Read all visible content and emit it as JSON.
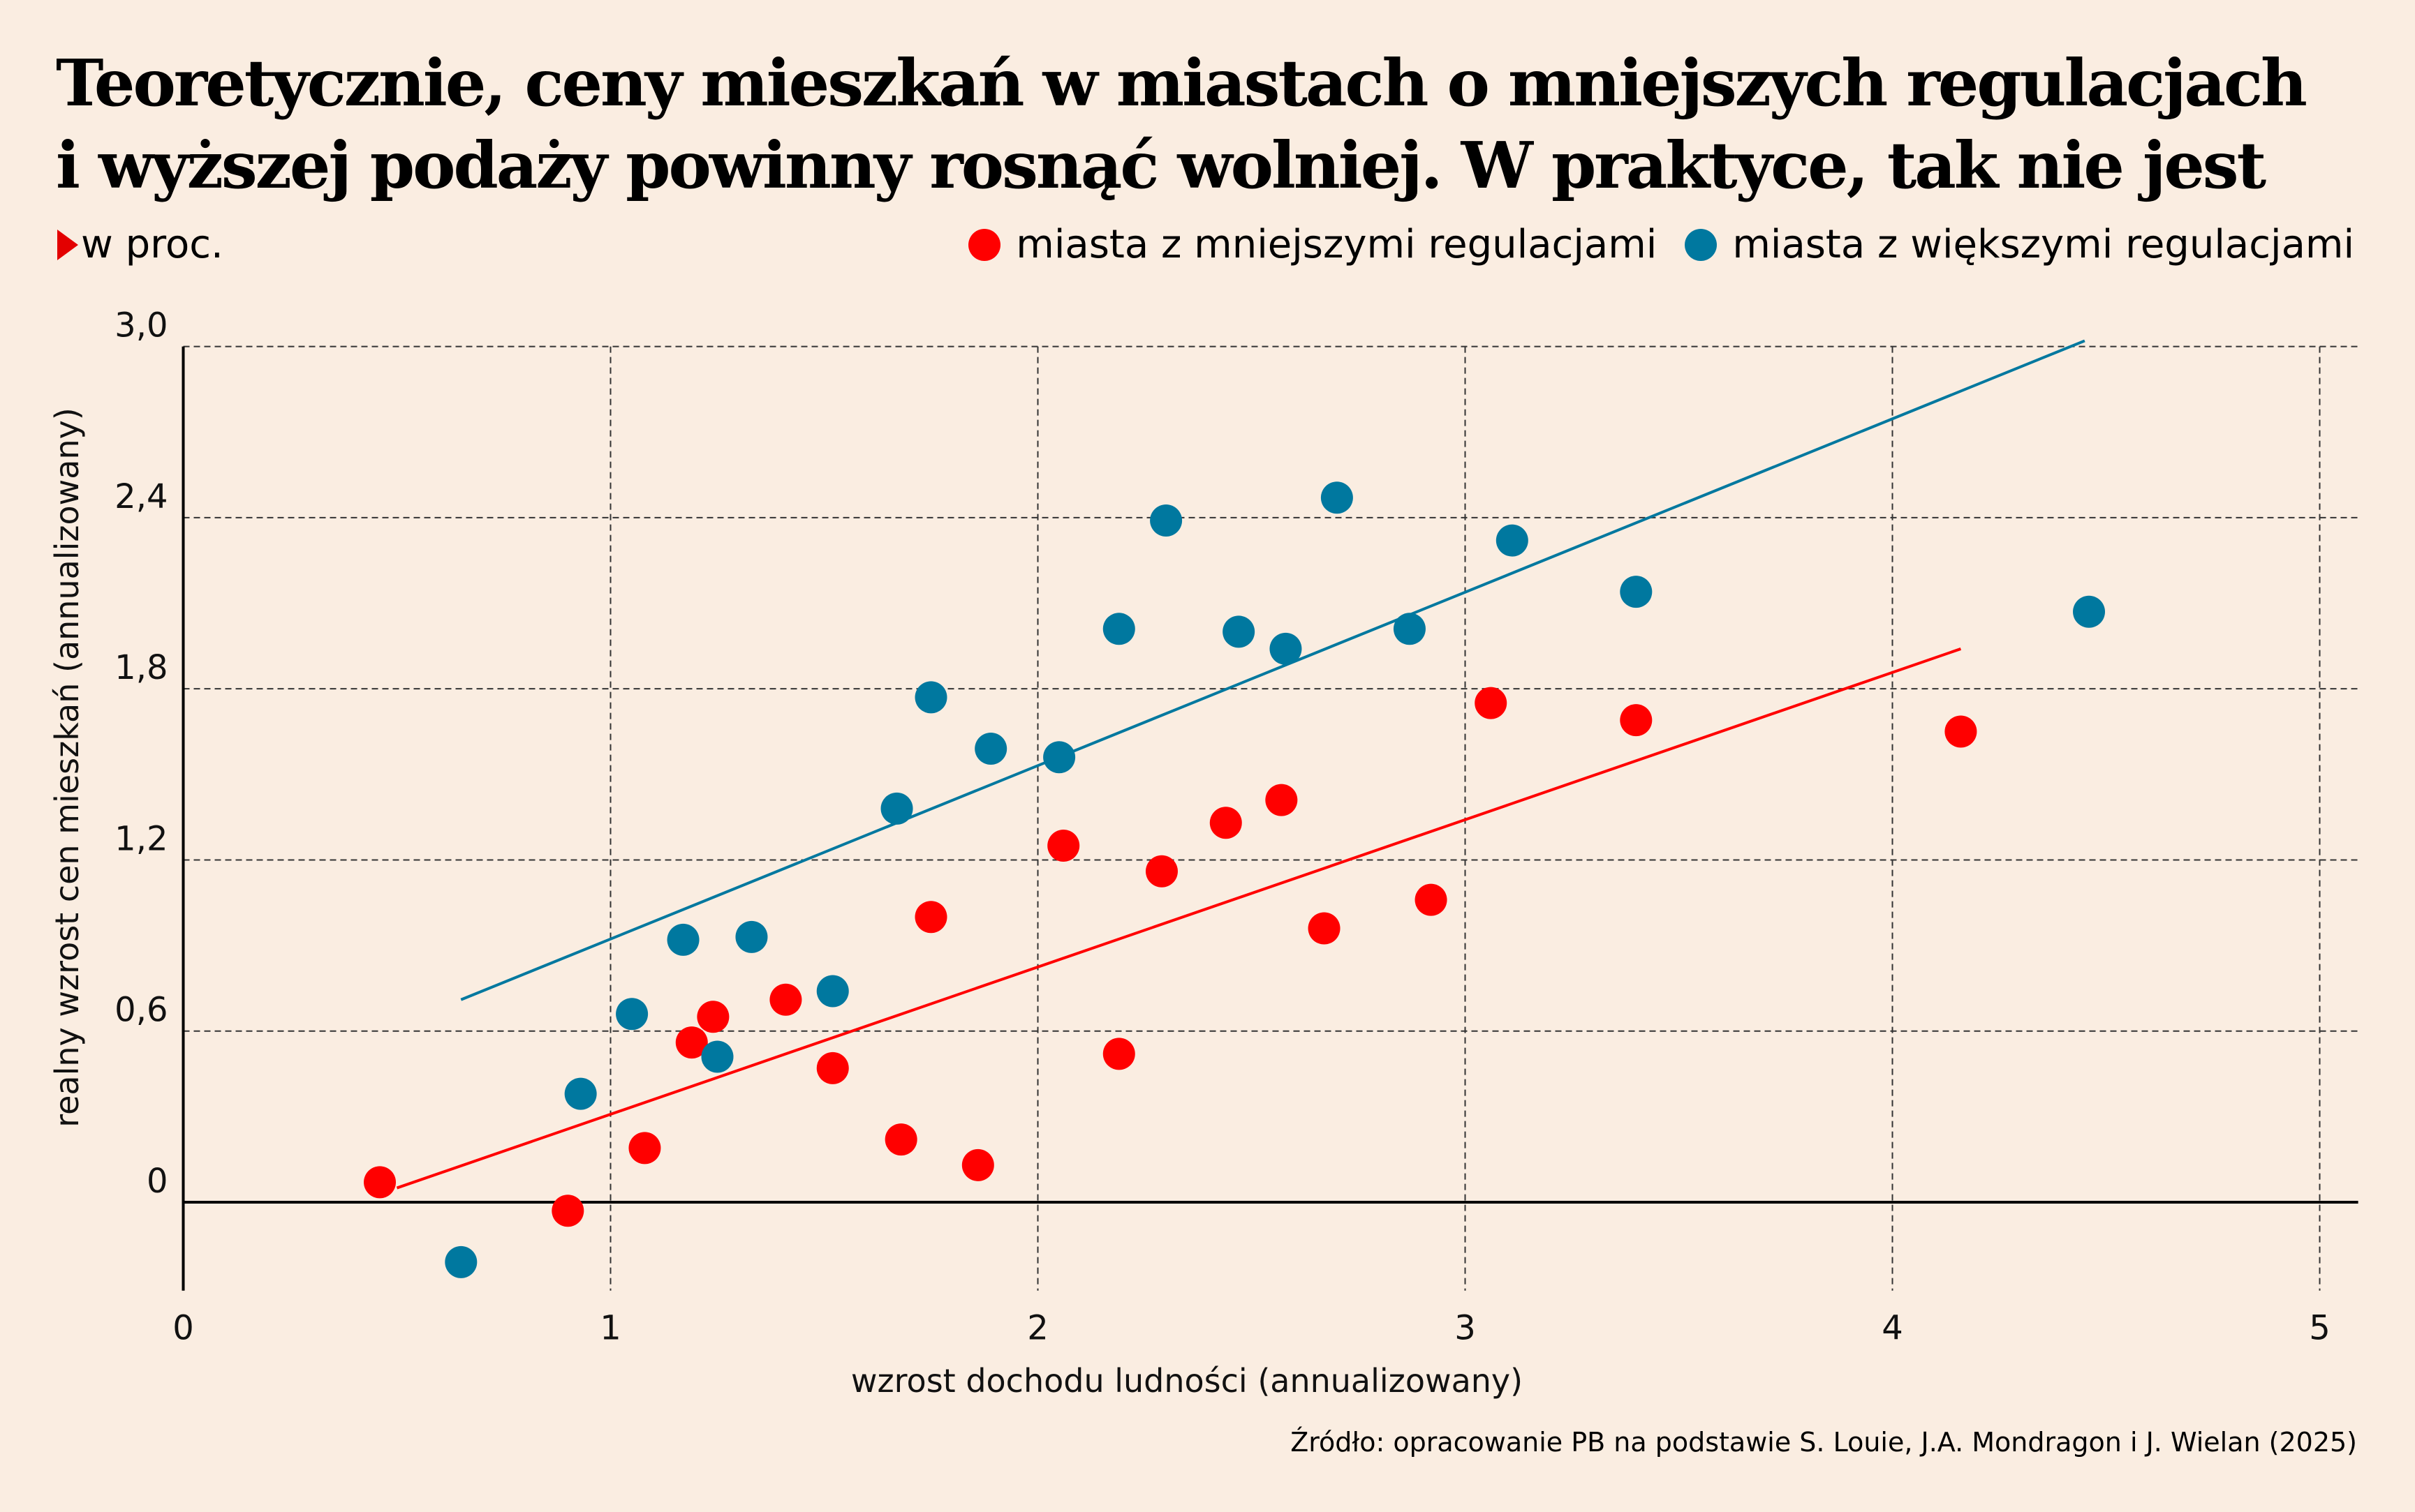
{
  "chart_data": {
    "type": "scatter",
    "title": "Teoretycznie, ceny mieszkań w miastach o mniejszych regulacjach i wyższej podaży powinny rosnąć wolniej. W praktyce, tak nie jest",
    "title_lines": [
      "Teoretycznie, ceny mieszkań w miastach o mniejszych regulacjach",
      "i wyższej podaży powinny rosnąć wolniej. W praktyce, tak nie jest"
    ],
    "unit": "w proc.",
    "xlabel": "wzrost dochodu ludności (annualizowany)",
    "ylabel": "realny wzrost cen mieszkań (annualizowany)",
    "xlim": [
      0,
      5.09
    ],
    "ylim": [
      -0.31,
      3.0
    ],
    "xticks": [
      0,
      1,
      2,
      3,
      4,
      5
    ],
    "xtick_labels": [
      "0",
      "1",
      "2",
      "3",
      "4",
      "5"
    ],
    "yticks": [
      0,
      0.6,
      1.2,
      1.8,
      2.4,
      3.0
    ],
    "ytick_labels": [
      "0",
      "0,6",
      "1,2",
      "1,8",
      "2,4",
      "3,0"
    ],
    "grid": true,
    "legend_position": "top-right",
    "source": "Źródło: opracowanie PB na podstawie S. Louie, J.A. Mondragon i J. Wielan (2025)",
    "series": [
      {
        "name": "miasta z mniejszymi regulacjami",
        "color": "#ff0000",
        "x": [
          0.46,
          0.9,
          1.08,
          1.19,
          1.24,
          1.41,
          1.52,
          1.68,
          1.75,
          1.86,
          2.06,
          2.19,
          2.29,
          2.44,
          2.57,
          2.67,
          2.92,
          3.06,
          3.4,
          4.16
        ],
        "y": [
          0.07,
          -0.03,
          0.19,
          0.56,
          0.65,
          0.71,
          0.47,
          0.22,
          1.0,
          0.13,
          1.25,
          0.52,
          1.16,
          1.33,
          1.41,
          0.96,
          1.06,
          1.75,
          1.69,
          1.65
        ],
        "trend": {
          "x": [
            0.5,
            4.16
          ],
          "y": [
            0.05,
            1.94
          ]
        }
      },
      {
        "name": "miasta z większymi regulacjami",
        "color": "#00789f",
        "x": [
          0.65,
          0.93,
          1.05,
          1.17,
          1.25,
          1.33,
          1.52,
          1.67,
          1.75,
          1.89,
          2.05,
          2.19,
          2.3,
          2.47,
          2.58,
          2.7,
          2.87,
          3.11,
          3.4,
          4.46
        ],
        "y": [
          -0.21,
          0.38,
          0.66,
          0.92,
          0.51,
          0.93,
          0.74,
          1.38,
          1.77,
          1.59,
          1.56,
          2.01,
          2.39,
          2.0,
          1.94,
          2.47,
          2.01,
          2.32,
          2.14,
          2.07
        ],
        "trend": {
          "x": [
            0.65,
            4.45
          ],
          "y": [
            0.71,
            3.02
          ]
        }
      }
    ]
  }
}
